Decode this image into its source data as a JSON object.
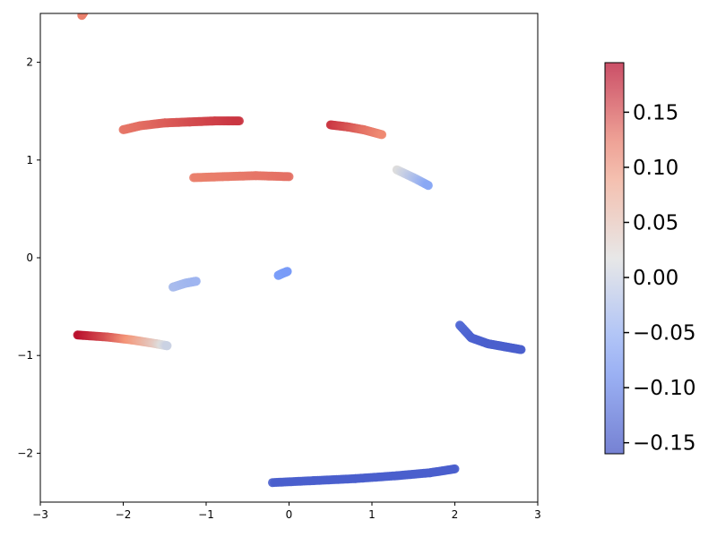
{
  "chart_data": {
    "type": "scatter",
    "title": "",
    "xlabel": "",
    "ylabel": "",
    "xlim": [
      -3,
      3
    ],
    "ylim": [
      -2.5,
      2.5
    ],
    "grid": false,
    "colormap": "coolwarm",
    "colorbar": {
      "range": [
        -0.16,
        0.195
      ],
      "ticks": [
        -0.15,
        -0.1,
        -0.05,
        0.0,
        0.05,
        0.1,
        0.15
      ],
      "tick_labels": [
        "−0.15",
        "−0.10",
        "−0.05",
        "0.00",
        "0.05",
        "0.10",
        "0.15"
      ],
      "alpha": 0.7
    },
    "x_ticks": [
      -3,
      -2,
      -1,
      0,
      1,
      2,
      3
    ],
    "x_tick_labels": [
      "−3",
      "−2",
      "−1",
      "0",
      "1",
      "2",
      "3"
    ],
    "y_ticks": [
      -2,
      -1,
      0,
      1,
      2
    ],
    "y_tick_labels": [
      "−2",
      "−1",
      "0",
      "1",
      "2"
    ],
    "series": [
      {
        "points": [
          [
            -2.47,
            2.52
          ],
          [
            -2.5,
            2.48
          ]
        ],
        "c": [
          0.12,
          0.12
        ]
      },
      {
        "points": [
          [
            -2.0,
            1.31
          ],
          [
            -1.8,
            1.35
          ],
          [
            -1.5,
            1.38
          ],
          [
            -1.2,
            1.39
          ],
          [
            -0.9,
            1.4
          ],
          [
            -0.6,
            1.4
          ]
        ],
        "c": [
          0.125,
          0.13,
          0.14,
          0.15,
          0.158,
          0.165
        ]
      },
      {
        "points": [
          [
            0.5,
            1.36
          ],
          [
            0.7,
            1.34
          ],
          [
            0.9,
            1.31
          ],
          [
            1.12,
            1.26
          ]
        ],
        "c": [
          0.165,
          0.15,
          0.13,
          0.115
        ]
      },
      {
        "points": [
          [
            -1.15,
            0.82
          ],
          [
            -0.8,
            0.83
          ],
          [
            -0.4,
            0.84
          ],
          [
            0.0,
            0.83
          ]
        ],
        "c": [
          0.12,
          0.122,
          0.126,
          0.13
        ]
      },
      {
        "points": [
          [
            1.3,
            0.9
          ],
          [
            1.5,
            0.82
          ],
          [
            1.68,
            0.74
          ]
        ],
        "c": [
          0.02,
          -0.02,
          -0.06
        ]
      },
      {
        "points": [
          [
            -1.4,
            -0.3
          ],
          [
            -1.25,
            -0.26
          ],
          [
            -1.12,
            -0.24
          ]
        ],
        "c": [
          -0.03,
          -0.035,
          -0.04
        ]
      },
      {
        "points": [
          [
            -0.13,
            -0.18
          ],
          [
            -0.08,
            -0.16
          ],
          [
            -0.02,
            -0.14
          ]
        ],
        "c": [
          -0.07,
          -0.072,
          -0.075
        ]
      },
      {
        "points": [
          [
            -2.55,
            -0.79
          ],
          [
            -2.2,
            -0.81
          ],
          [
            -1.9,
            -0.84
          ],
          [
            -1.6,
            -0.88
          ],
          [
            -1.47,
            -0.9
          ]
        ],
        "c": [
          0.19,
          0.15,
          0.1,
          0.04,
          0.0
        ]
      },
      {
        "points": [
          [
            2.06,
            -0.69
          ],
          [
            2.2,
            -0.82
          ],
          [
            2.4,
            -0.88
          ],
          [
            2.6,
            -0.91
          ],
          [
            2.8,
            -0.94
          ]
        ],
        "c": [
          -0.125,
          -0.135,
          -0.14,
          -0.14,
          -0.14
        ]
      },
      {
        "points": [
          [
            -0.2,
            -2.3
          ],
          [
            0.3,
            -2.28
          ],
          [
            0.8,
            -2.26
          ],
          [
            1.3,
            -2.23
          ],
          [
            1.7,
            -2.2
          ],
          [
            2.0,
            -2.16
          ]
        ],
        "c": [
          -0.14,
          -0.14,
          -0.14,
          -0.14,
          -0.14,
          -0.14
        ]
      }
    ]
  }
}
